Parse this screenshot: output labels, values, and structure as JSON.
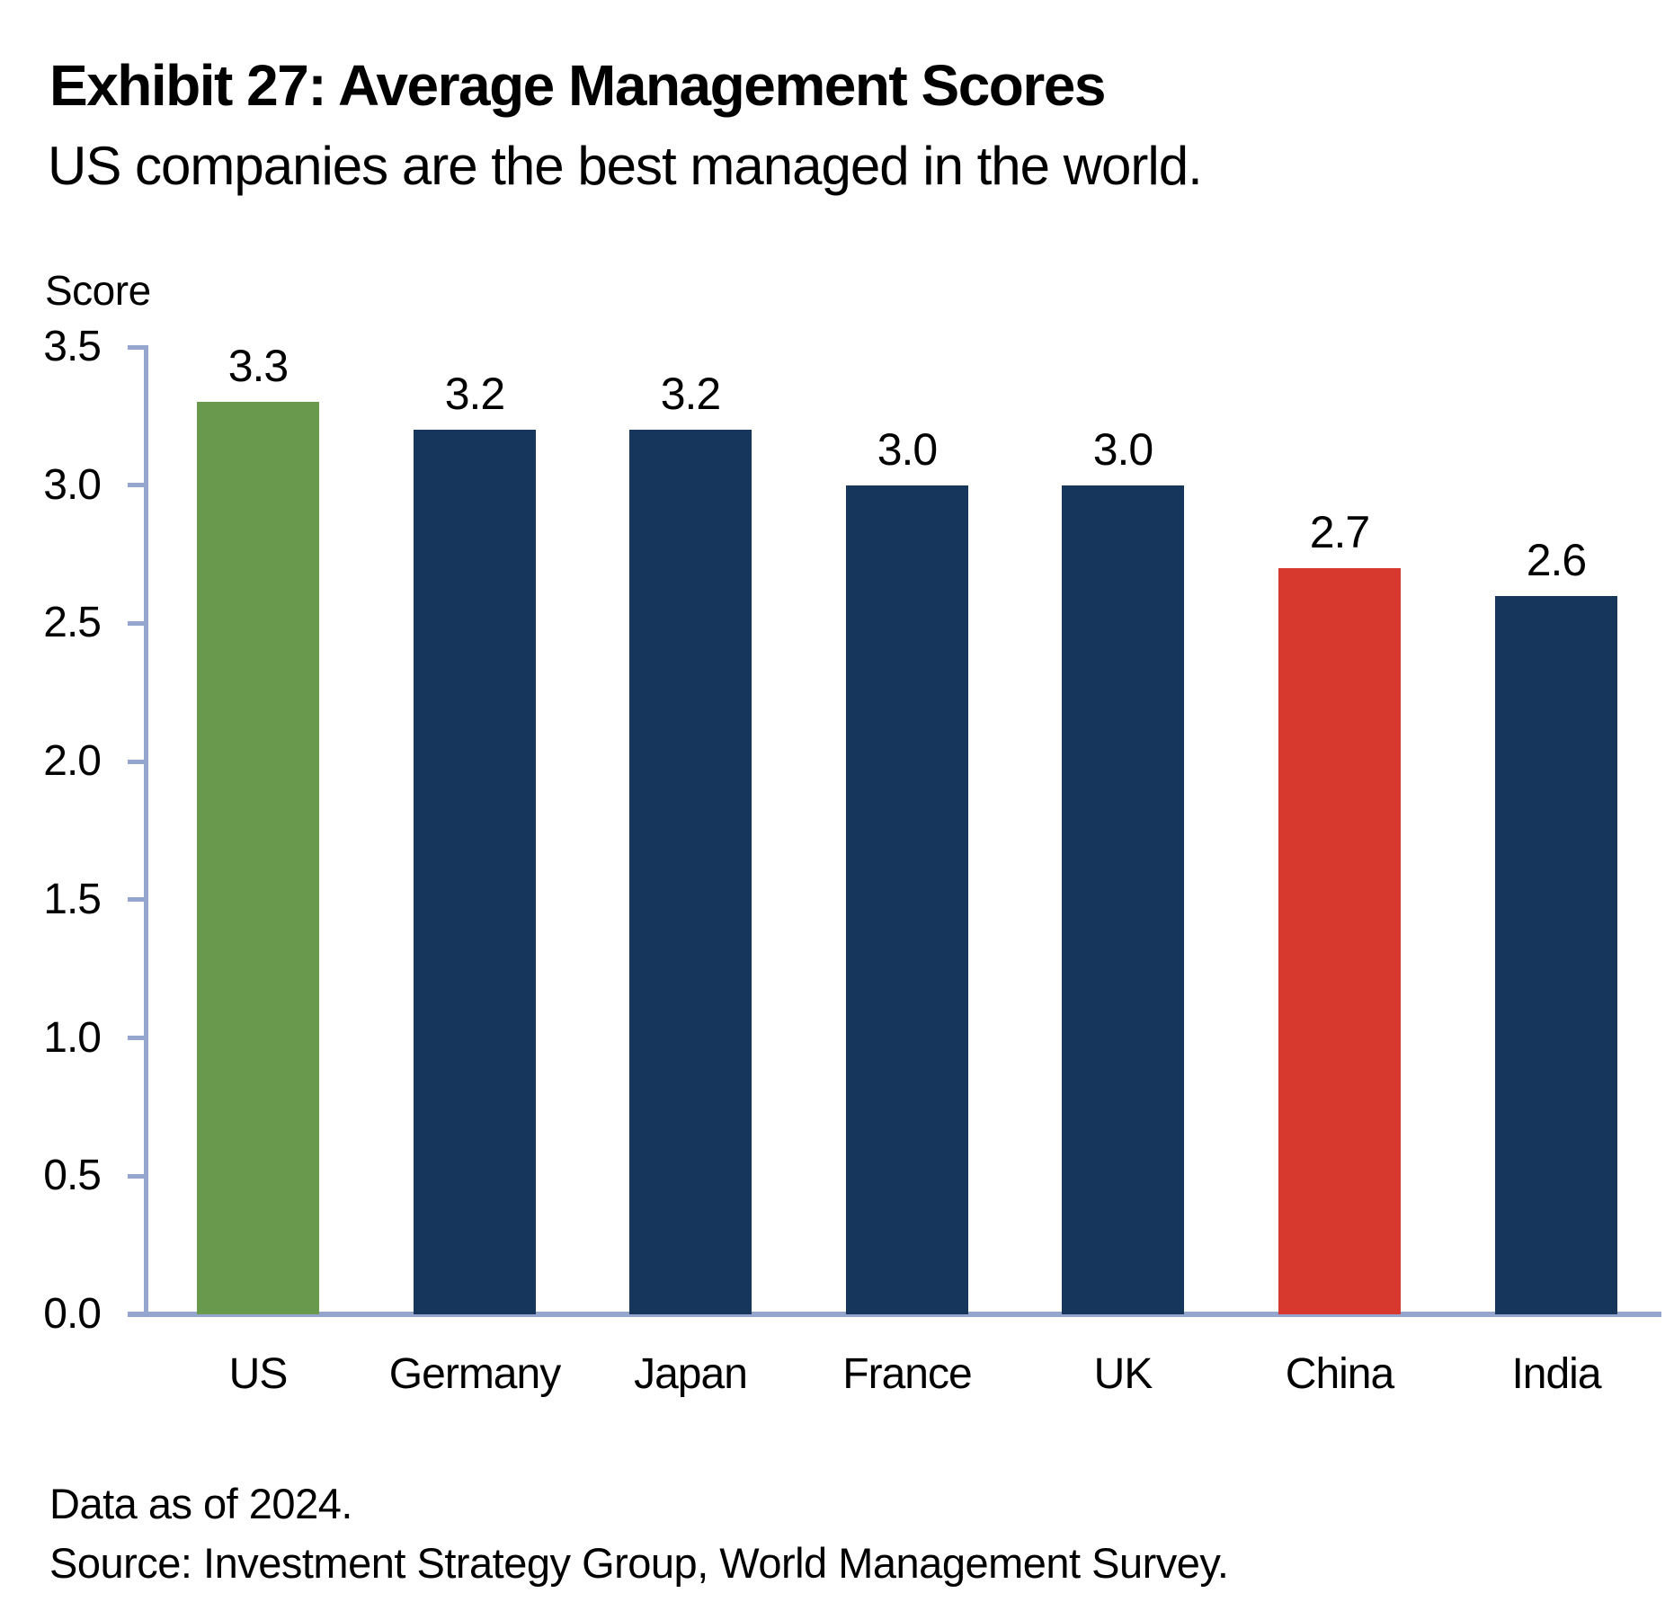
{
  "header": {
    "title": "Exhibit 27: Average Management Scores",
    "subtitle": "US companies are the best managed in the world."
  },
  "colors": {
    "navy": "#16365c",
    "green": "#69994d",
    "red": "#d8392f",
    "axis": "#94a6cd",
    "text": "#000000"
  },
  "chart_data": {
    "type": "bar",
    "title": "Exhibit 27: Average Management Scores",
    "subtitle": "US companies are the best managed in the world.",
    "ylabel": "Score",
    "xlabel": "",
    "ylim": [
      0,
      3.5
    ],
    "ytick_step": 0.5,
    "ytick_labels": [
      "3.5",
      "3.0",
      "2.5",
      "2.0",
      "1.5",
      "1.0",
      "0.5",
      "0.0"
    ],
    "grid": false,
    "legend": false,
    "categories": [
      "US",
      "Germany",
      "Japan",
      "France",
      "UK",
      "China",
      "India"
    ],
    "values": [
      3.3,
      3.2,
      3.2,
      3.0,
      3.0,
      2.7,
      2.6
    ],
    "value_labels": [
      "3.3",
      "3.2",
      "3.2",
      "3.0",
      "3.0",
      "2.7",
      "2.6"
    ],
    "bar_color_keys": [
      "green",
      "navy",
      "navy",
      "navy",
      "navy",
      "red",
      "navy"
    ]
  },
  "footer": {
    "note1": "Data as of 2024.",
    "note2": "Source: Investment Strategy Group, World Management Survey."
  }
}
